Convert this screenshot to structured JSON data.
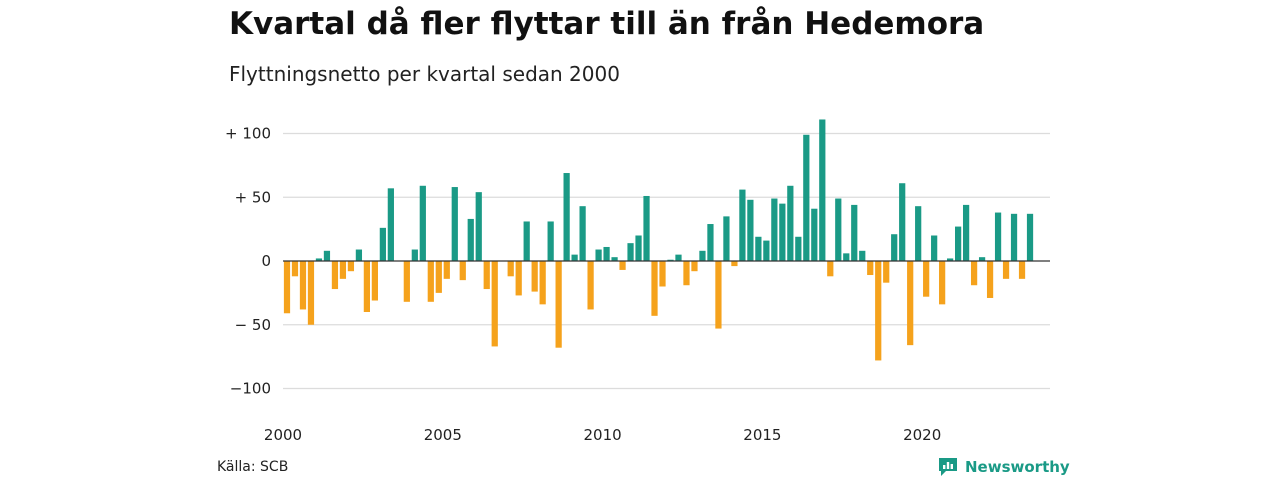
{
  "colors": {
    "positive": "#1a9a86",
    "negative": "#f5a21c",
    "grid": "#dcdcdc",
    "brand": "#1a9a86"
  },
  "footer": {
    "source": "Källa: SCB",
    "brand": "Newsworthy",
    "brand_icon": "newsworthy-logo-icon"
  },
  "chart_data": {
    "type": "bar",
    "title": "Kvartal då fler flyttar till än från Hedemora",
    "subtitle": "Flyttningsnetto per kvartal sedan 2000",
    "xlabel": "",
    "ylabel": "",
    "ylim": [
      -100,
      110
    ],
    "grid": true,
    "yticks": [
      {
        "value": 100,
        "label": "+ 100"
      },
      {
        "value": 50,
        "label": "+  50"
      },
      {
        "value": 0,
        "label": "0"
      },
      {
        "value": -50,
        "label": "− 50"
      },
      {
        "value": -100,
        "label": "−100"
      }
    ],
    "xticks": [
      {
        "value": 2000,
        "label": "2000"
      },
      {
        "value": 2005,
        "label": "2005"
      },
      {
        "value": 2010,
        "label": "2010"
      },
      {
        "value": 2015,
        "label": "2015"
      },
      {
        "value": 2020,
        "label": "2020"
      }
    ],
    "categories": [
      "2000Q1",
      "2000Q2",
      "2000Q3",
      "2000Q4",
      "2001Q1",
      "2001Q2",
      "2001Q3",
      "2001Q4",
      "2002Q1",
      "2002Q2",
      "2002Q3",
      "2002Q4",
      "2003Q1",
      "2003Q2",
      "2003Q3",
      "2003Q4",
      "2004Q1",
      "2004Q2",
      "2004Q3",
      "2004Q4",
      "2005Q1",
      "2005Q2",
      "2005Q3",
      "2005Q4",
      "2006Q1",
      "2006Q2",
      "2006Q3",
      "2006Q4",
      "2007Q1",
      "2007Q2",
      "2007Q3",
      "2007Q4",
      "2008Q1",
      "2008Q2",
      "2008Q3",
      "2008Q4",
      "2009Q1",
      "2009Q2",
      "2009Q3",
      "2009Q4",
      "2010Q1",
      "2010Q2",
      "2010Q3",
      "2010Q4",
      "2011Q1",
      "2011Q2",
      "2011Q3",
      "2011Q4",
      "2012Q1",
      "2012Q2",
      "2012Q3",
      "2012Q4",
      "2013Q1",
      "2013Q2",
      "2013Q3",
      "2013Q4",
      "2014Q1",
      "2014Q2",
      "2014Q3",
      "2014Q4",
      "2015Q1",
      "2015Q2",
      "2015Q3",
      "2015Q4",
      "2016Q1",
      "2016Q2",
      "2016Q3",
      "2016Q4",
      "2017Q1",
      "2017Q2",
      "2017Q3",
      "2017Q4",
      "2018Q1",
      "2018Q2",
      "2018Q3",
      "2018Q4",
      "2019Q1",
      "2019Q2",
      "2019Q3",
      "2019Q4",
      "2020Q1",
      "2020Q2",
      "2020Q3",
      "2020Q4",
      "2021Q1",
      "2021Q2",
      "2021Q3",
      "2021Q4",
      "2022Q1",
      "2022Q2",
      "2022Q3",
      "2022Q4",
      "2023Q1",
      "2023Q2",
      "2023Q3",
      "2023Q4"
    ],
    "values": [
      -41,
      -12,
      -38,
      -50,
      2,
      8,
      -22,
      -14,
      -8,
      9,
      -40,
      -31,
      26,
      57,
      0,
      -32,
      9,
      59,
      -32,
      -25,
      -14,
      58,
      -15,
      33,
      54,
      -22,
      -67,
      0,
      -12,
      -27,
      31,
      -24,
      -34,
      31,
      -68,
      69,
      5,
      43,
      -38,
      9,
      11,
      3,
      -7,
      14,
      20,
      51,
      -43,
      -20,
      1,
      5,
      -19,
      -8,
      8,
      29,
      -53,
      35,
      -4,
      56,
      48,
      19,
      16,
      49,
      45,
      59,
      19,
      99,
      41,
      111,
      -12,
      49,
      6,
      44,
      8,
      -11,
      -78,
      -17,
      21,
      61,
      -66,
      43,
      -28,
      20,
      -34,
      2,
      27,
      44,
      -19,
      3,
      -29,
      38,
      -14,
      37,
      -14,
      37,
      0,
      0
    ]
  }
}
